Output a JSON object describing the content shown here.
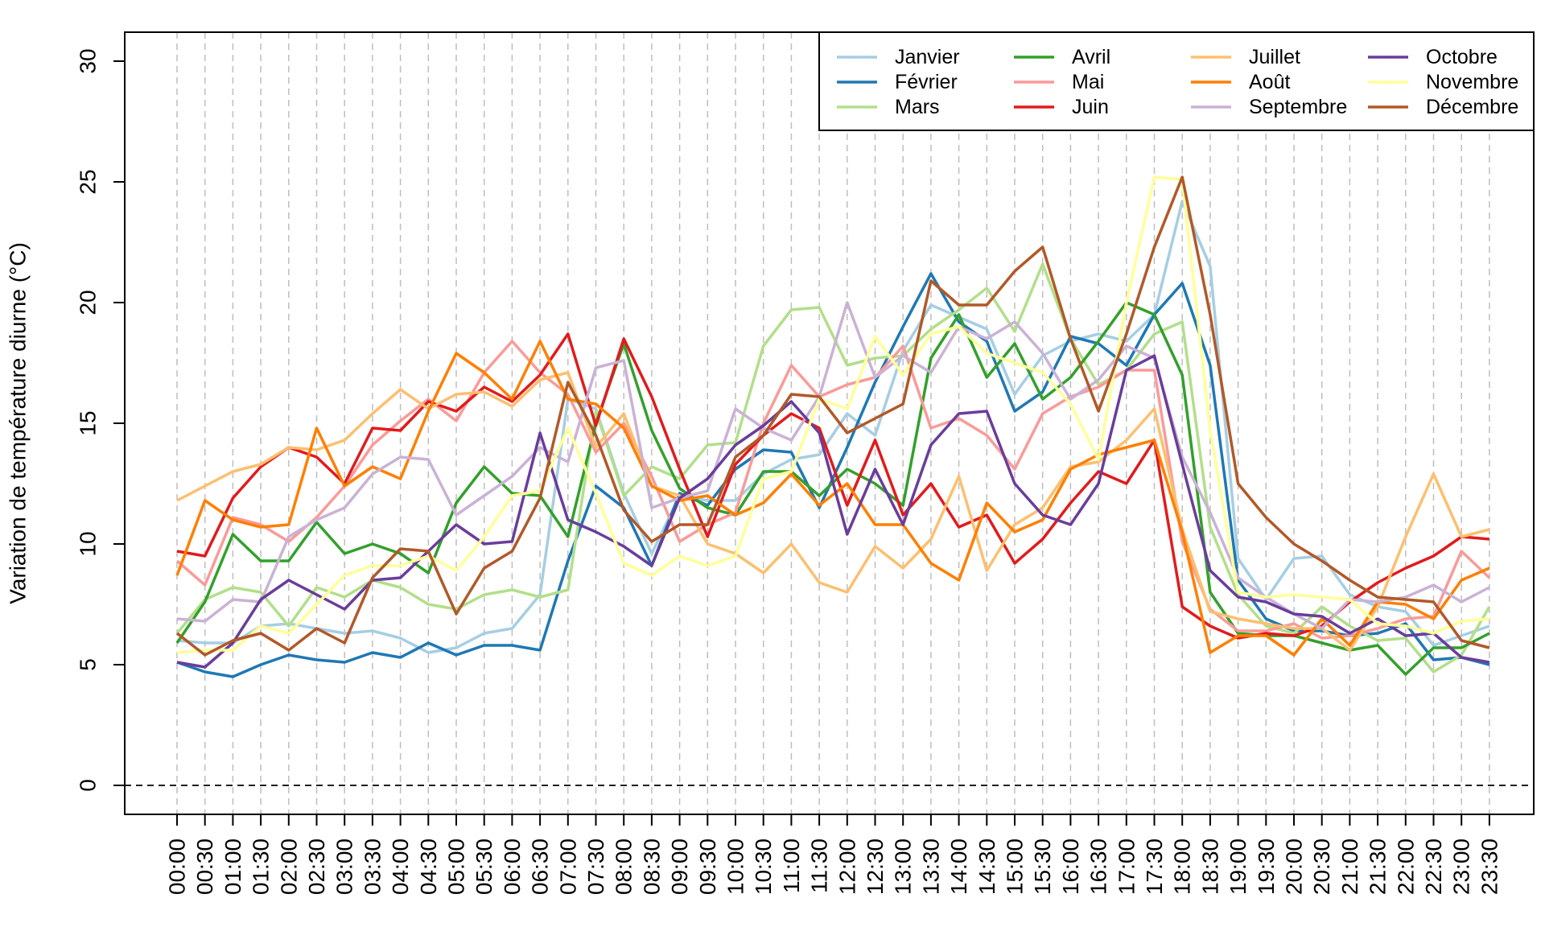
{
  "chart_data": {
    "type": "line",
    "title": "",
    "xlabel": "",
    "ylabel": "Variation de température diurne (°C)",
    "ylim": [
      -1.2,
      31.2
    ],
    "yticks": [
      0,
      5,
      10,
      15,
      20,
      25,
      30
    ],
    "grid": "vertical dashed at each time slot",
    "reference_line": 0,
    "legend_position": "top-right",
    "x": [
      "00:00",
      "00:30",
      "01:00",
      "01:30",
      "02:00",
      "02:30",
      "03:00",
      "03:30",
      "04:00",
      "04:30",
      "05:00",
      "05:30",
      "06:00",
      "06:30",
      "07:00",
      "07:30",
      "08:00",
      "08:30",
      "09:00",
      "09:30",
      "10:00",
      "10:30",
      "11:00",
      "11:30",
      "12:00",
      "12:30",
      "13:00",
      "13:30",
      "14:00",
      "14:30",
      "15:00",
      "15:30",
      "16:00",
      "16:30",
      "17:00",
      "17:30",
      "18:00",
      "18:30",
      "19:00",
      "19:30",
      "20:00",
      "20:30",
      "21:00",
      "21:30",
      "22:00",
      "22:30",
      "23:00",
      "23:30"
    ],
    "series": [
      {
        "name": "Janvier",
        "color": "#a6cee3",
        "values": [
          6.0,
          5.9,
          5.9,
          6.6,
          6.7,
          6.5,
          6.3,
          6.4,
          6.1,
          5.5,
          5.7,
          6.3,
          6.5,
          7.9,
          16.0,
          15.6,
          12.1,
          9.6,
          12.0,
          11.8,
          11.8,
          12.9,
          13.5,
          13.7,
          15.4,
          14.5,
          18.0,
          19.9,
          19.4,
          18.9,
          16.2,
          17.8,
          18.4,
          18.7,
          18.4,
          19.5,
          24.2,
          21.5,
          9.4,
          7.7,
          9.4,
          9.5,
          7.9,
          7.4,
          7.2,
          5.8,
          6.2,
          6.6
        ]
      },
      {
        "name": "Février",
        "color": "#1f78b4",
        "values": [
          5.1,
          4.7,
          4.5,
          5.0,
          5.4,
          5.2,
          5.1,
          5.5,
          5.3,
          5.9,
          5.4,
          5.8,
          5.8,
          5.6,
          9.3,
          12.4,
          11.5,
          9.1,
          12.1,
          11.6,
          13.1,
          13.9,
          13.8,
          11.5,
          14.0,
          16.7,
          19.0,
          21.2,
          19.2,
          18.4,
          15.5,
          16.3,
          18.6,
          18.3,
          17.4,
          19.5,
          20.8,
          17.4,
          8.5,
          6.9,
          6.4,
          6.4,
          6.2,
          6.3,
          6.7,
          5.2,
          5.3,
          5.0
        ]
      },
      {
        "name": "Mars",
        "color": "#b2df8a",
        "values": [
          6.3,
          7.7,
          8.2,
          8.0,
          6.6,
          8.2,
          7.8,
          8.5,
          8.2,
          7.5,
          7.3,
          7.9,
          8.1,
          7.8,
          8.1,
          15.5,
          12.0,
          13.2,
          12.7,
          14.1,
          14.2,
          18.2,
          19.7,
          19.8,
          17.4,
          17.7,
          17.8,
          18.9,
          19.7,
          20.6,
          18.8,
          21.6,
          18.5,
          16.6,
          17.2,
          18.7,
          19.2,
          10.7,
          7.9,
          6.6,
          6.3,
          7.4,
          6.6,
          6.0,
          6.1,
          4.7,
          5.4,
          7.4
        ]
      },
      {
        "name": "Avril",
        "color": "#33a02c",
        "values": [
          5.9,
          7.6,
          10.4,
          9.3,
          9.3,
          10.9,
          9.6,
          10.0,
          9.6,
          8.8,
          11.7,
          13.2,
          12.1,
          12.0,
          10.3,
          15.0,
          18.3,
          14.7,
          12.3,
          11.5,
          11.2,
          13.0,
          13.0,
          12.0,
          13.1,
          12.5,
          11.6,
          17.7,
          19.5,
          16.9,
          18.3,
          16.0,
          16.9,
          18.4,
          20.0,
          19.5,
          17.0,
          8.0,
          6.3,
          6.2,
          6.2,
          5.9,
          5.6,
          5.8,
          4.6,
          5.7,
          5.7,
          6.3
        ]
      },
      {
        "name": "Mai",
        "color": "#fb9a99",
        "values": [
          9.3,
          8.3,
          11.1,
          10.8,
          10.1,
          11.1,
          12.4,
          14.1,
          15.1,
          16.0,
          15.1,
          17.1,
          18.4,
          17.1,
          16.2,
          13.8,
          15.0,
          12.8,
          10.1,
          10.8,
          11.3,
          15.0,
          17.4,
          16.1,
          16.6,
          16.9,
          18.2,
          14.8,
          15.2,
          14.5,
          13.1,
          15.4,
          16.1,
          16.5,
          17.2,
          17.2,
          10.1,
          7.3,
          6.4,
          6.4,
          6.7,
          6.1,
          6.2,
          6.5,
          6.9,
          7.0,
          9.7,
          8.6
        ]
      },
      {
        "name": "Juin",
        "color": "#e31a1c",
        "values": [
          9.7,
          9.5,
          11.9,
          13.2,
          14.0,
          13.6,
          12.5,
          14.8,
          14.7,
          15.9,
          15.5,
          16.5,
          15.9,
          17.0,
          18.7,
          14.9,
          18.5,
          16.1,
          13.1,
          10.3,
          13.3,
          14.5,
          15.4,
          14.8,
          11.6,
          14.3,
          11.2,
          12.5,
          10.7,
          11.2,
          9.2,
          10.2,
          11.7,
          13.0,
          12.5,
          14.3,
          7.4,
          6.6,
          6.1,
          6.3,
          6.2,
          6.6,
          7.6,
          8.4,
          9.0,
          9.5,
          10.3,
          10.2
        ]
      },
      {
        "name": "Juillet",
        "color": "#fdbf6f",
        "values": [
          11.8,
          12.4,
          13.0,
          13.3,
          14.0,
          13.9,
          14.3,
          15.4,
          16.4,
          15.6,
          16.2,
          16.3,
          15.7,
          16.8,
          17.1,
          14.0,
          15.4,
          12.4,
          12.0,
          10.0,
          9.6,
          8.8,
          10.0,
          8.4,
          8.0,
          9.9,
          9.0,
          10.2,
          12.8,
          8.9,
          10.8,
          11.5,
          13.2,
          13.4,
          14.3,
          15.6,
          10.6,
          7.2,
          6.9,
          6.7,
          6.5,
          6.5,
          5.6,
          7.4,
          10.3,
          12.9,
          10.3,
          10.6
        ]
      },
      {
        "name": "Août",
        "color": "#ff7f00",
        "values": [
          8.7,
          11.8,
          11.0,
          10.7,
          10.8,
          14.8,
          12.4,
          13.2,
          12.7,
          15.5,
          17.9,
          17.1,
          16.0,
          18.4,
          16.0,
          15.8,
          14.8,
          12.4,
          11.8,
          12.0,
          11.2,
          11.7,
          12.9,
          11.6,
          12.5,
          10.8,
          10.8,
          9.2,
          8.5,
          11.7,
          10.5,
          11.0,
          13.1,
          13.7,
          14.0,
          14.3,
          10.5,
          5.5,
          6.2,
          6.2,
          5.4,
          6.9,
          5.8,
          7.6,
          7.5,
          6.9,
          8.5,
          9.0
        ]
      },
      {
        "name": "Septembre",
        "color": "#cab2d6",
        "values": [
          6.9,
          6.8,
          7.7,
          7.6,
          10.3,
          11.0,
          11.5,
          12.9,
          13.6,
          13.5,
          11.2,
          12.0,
          12.8,
          14.0,
          13.4,
          17.3,
          17.6,
          11.5,
          11.9,
          12.2,
          15.6,
          14.8,
          14.3,
          16.1,
          20.0,
          16.9,
          17.8,
          17.1,
          19.0,
          18.5,
          19.2,
          17.9,
          16.0,
          16.8,
          18.2,
          17.7,
          13.6,
          11.3,
          8.6,
          7.8,
          7.1,
          6.5,
          7.7,
          7.6,
          7.8,
          8.3,
          7.6,
          8.2
        ]
      },
      {
        "name": "Octobre",
        "color": "#6a3d9a",
        "values": [
          5.1,
          4.9,
          5.9,
          7.7,
          8.5,
          7.9,
          7.3,
          8.5,
          8.6,
          9.7,
          10.8,
          10.0,
          10.1,
          14.6,
          11.0,
          10.5,
          9.9,
          9.1,
          11.9,
          12.7,
          14.1,
          14.9,
          15.9,
          14.6,
          10.4,
          13.1,
          10.8,
          14.1,
          15.4,
          15.5,
          12.5,
          11.2,
          10.8,
          12.5,
          17.2,
          17.8,
          13.3,
          8.9,
          7.8,
          7.6,
          7.1,
          7.0,
          6.3,
          6.9,
          6.2,
          6.3,
          5.3,
          5.1
        ]
      },
      {
        "name": "Novembre",
        "color": "#ffff99",
        "values": [
          5.5,
          5.6,
          5.6,
          6.6,
          6.3,
          7.5,
          8.7,
          9.1,
          9.1,
          9.5,
          8.9,
          10.3,
          12.0,
          12.2,
          14.8,
          12.1,
          9.2,
          8.7,
          9.5,
          9.1,
          9.5,
          12.7,
          13.0,
          16.0,
          15.6,
          18.6,
          17.0,
          18.7,
          19.0,
          17.9,
          17.5,
          17.1,
          15.8,
          13.5,
          20.0,
          25.2,
          25.1,
          14.7,
          8.0,
          7.8,
          7.9,
          7.8,
          7.7,
          6.7,
          6.6,
          6.3,
          6.8,
          6.9
        ]
      },
      {
        "name": "Décembre",
        "color": "#b15928",
        "values": [
          6.3,
          5.4,
          6.0,
          6.3,
          5.6,
          6.5,
          5.9,
          8.6,
          9.8,
          9.7,
          7.1,
          9.0,
          9.7,
          11.9,
          16.7,
          14.5,
          11.4,
          10.1,
          10.8,
          10.8,
          13.6,
          14.5,
          16.2,
          16.1,
          14.6,
          15.2,
          15.8,
          20.9,
          19.9,
          19.9,
          21.3,
          22.3,
          18.5,
          15.5,
          18.7,
          22.3,
          25.2,
          19.5,
          12.5,
          11.1,
          10.0,
          9.3,
          8.5,
          7.8,
          7.7,
          7.6,
          6.0,
          5.7
        ]
      }
    ]
  }
}
